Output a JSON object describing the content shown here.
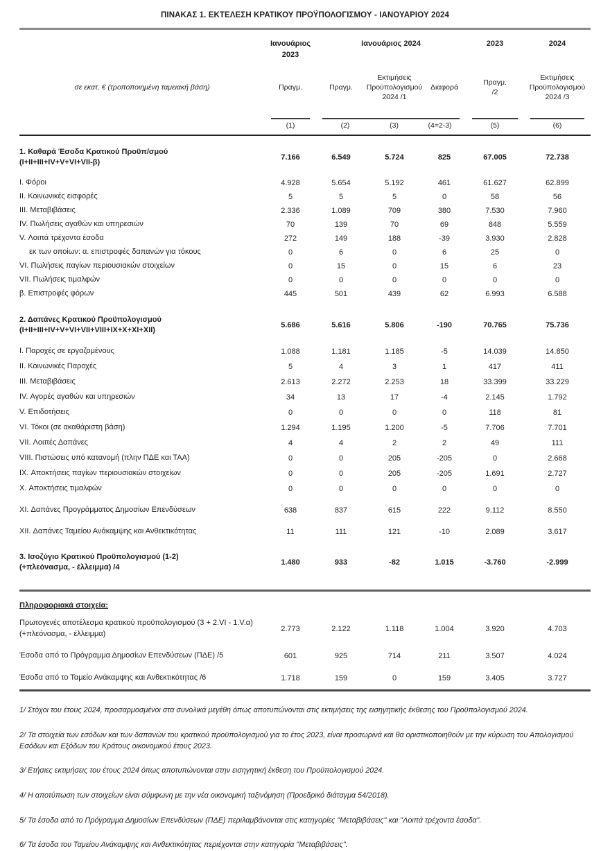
{
  "title": "ΠΙΝΑΚΑΣ 1. ΕΚΤΕΛΕΣΗ ΚΡΑΤΙΚΟΥ ΠΡΟΫΠΟΛΟΓΙΣΜΟΥ - ΙΑΝΟΥΑΡΙΟΥ 2024",
  "table": {
    "unit_label": "σε εκατ. € (τροποποιημένη ταμειακή βάση)",
    "column_groups": [
      {
        "label": "Ιανουάριος\n2023"
      },
      {
        "label": "Ιανουάριος 2024"
      },
      {
        "label": "2023"
      },
      {
        "label": "2024"
      }
    ],
    "sub_headers": [
      "Πραγμ.",
      "Πραγμ.",
      "Εκτιμήσεις\nΠροϋπολογισμού\n2024 /1",
      "Διαφορά",
      "Πραγμ.\n/2",
      "Εκτιμήσεις\nΠροϋπολογισμού\n2024 /3"
    ],
    "column_numbers": [
      "(1)",
      "(2)",
      "(3)",
      "(4=2-3)",
      "(5)",
      "(6)"
    ],
    "sections": [
      {
        "name": "section-1",
        "rows": [
          {
            "style": "total",
            "label": "1. Καθαρά Έσοδα Κρατικού Προϋπ/σμού",
            "label2": "(I+II+III+IV+V+VI+VII-β)",
            "values": [
              "7.166",
              "6.549",
              "5.724",
              "825",
              "67.005",
              "72.738"
            ]
          },
          {
            "style": "item",
            "label": "I.  Φόροι",
            "values": [
              "4.928",
              "5.654",
              "5.192",
              "461",
              "61.627",
              "62.899"
            ]
          },
          {
            "style": "item",
            "label": "II.  Κοινωνικές εισφορές",
            "values": [
              "5",
              "5",
              "5",
              "0",
              "58",
              "56"
            ]
          },
          {
            "style": "item",
            "label": "III. Μεταβιβάσεις",
            "values": [
              "2.336",
              "1.089",
              "709",
              "380",
              "7.530",
              "7.960"
            ]
          },
          {
            "style": "item",
            "label": "IV. Πωλήσεις αγαθών και υπηρεσιών",
            "values": [
              "70",
              "139",
              "70",
              "69",
              "848",
              "5.559"
            ]
          },
          {
            "style": "item",
            "label": "V.  Λοιπά τρέχοντα έσοδα",
            "values": [
              "272",
              "149",
              "188",
              "-39",
              "3.930",
              "2.828"
            ]
          },
          {
            "style": "item indent",
            "label": "εκ των οποίων:  α.  επιστροφές δαπανών για τόκους",
            "values": [
              "0",
              "6",
              "0",
              "6",
              "25",
              "0"
            ]
          },
          {
            "style": "item",
            "label": "VI.  Πωλήσεις παγίων περιουσιακών στοιχείων",
            "values": [
              "0",
              "15",
              "0",
              "15",
              "6",
              "23"
            ]
          },
          {
            "style": "item",
            "label": "VII. Πωλήσεις τιμαλφών",
            "values": [
              "0",
              "0",
              "0",
              "0",
              "0",
              "0"
            ]
          },
          {
            "style": "item",
            "label": "β.   Επιστροφές φόρων",
            "values": [
              "445",
              "501",
              "439",
              "62",
              "6.993",
              "6.588"
            ]
          }
        ]
      },
      {
        "name": "section-2",
        "rows": [
          {
            "style": "total",
            "label": "2. Δαπάνες Κρατικού Προϋπολογισμού",
            "label2": "(I+II+III+IV+V+VI+VII+VIII+IX+X+XI+XII)",
            "values": [
              "5.686",
              "5.616",
              "5.806",
              "-190",
              "70.765",
              "75.736"
            ]
          },
          {
            "style": "item",
            "label": "I. Παροχές σε εργαζομένους",
            "values": [
              "1.088",
              "1.181",
              "1.185",
              "-5",
              "14.039",
              "14.850"
            ]
          },
          {
            "style": "item",
            "label": "II. Κοινωνικές Παροχές",
            "values": [
              "5",
              "4",
              "3",
              "1",
              "417",
              "411"
            ]
          },
          {
            "style": "item",
            "label": "III. Μεταβιβάσεις",
            "values": [
              "2.613",
              "2.272",
              "2.253",
              "18",
              "33.399",
              "33.229"
            ]
          },
          {
            "style": "item",
            "label": "IV. Αγορές αγαθών και υπηρεσιών",
            "values": [
              "34",
              "13",
              "17",
              "-4",
              "2.145",
              "1.792"
            ]
          },
          {
            "style": "item",
            "label": "V. Επιδοτήσεις",
            "values": [
              "0",
              "0",
              "0",
              "0",
              "118",
              "81"
            ]
          },
          {
            "style": "item",
            "label": "VI. Τόκοι (σε ακαθάριστη βάση)",
            "values": [
              "1.294",
              "1.195",
              "1.200",
              "-5",
              "7.706",
              "7.701"
            ]
          },
          {
            "style": "item",
            "label": "VII. Λοιπές Δαπάνες",
            "values": [
              "4",
              "4",
              "2",
              "2",
              "49",
              "111"
            ]
          },
          {
            "style": "item",
            "label": "VIII. Πιστώσεις υπό κατανομή (πλην ΠΔΕ και ΤΑΑ)",
            "values": [
              "0",
              "0",
              "205",
              "-205",
              "0",
              "2.668"
            ]
          },
          {
            "style": "item",
            "label": "IX. Αποκτήσεις παγίων περιουσιακών στοιχείων",
            "values": [
              "0",
              "0",
              "205",
              "-205",
              "1.691",
              "2.727"
            ]
          },
          {
            "style": "item",
            "label": "X. Αποκτήσεις τιμαλφών",
            "values": [
              "0",
              "0",
              "0",
              "0",
              "0",
              "0"
            ]
          },
          {
            "style": "item",
            "gap": "lg",
            "label": "XI. Δαπάνες Προγράμματος Δημοσίων Επενδύσεων",
            "values": [
              "638",
              "837",
              "615",
              "222",
              "9.112",
              "8.550"
            ]
          },
          {
            "style": "item",
            "gap": "lg",
            "label": "XII. Δαπάνες Ταμείου Ανάκαμψης και Ανθεκτικότητας",
            "values": [
              "11",
              "111",
              "121",
              "-10",
              "2.089",
              "3.617"
            ]
          }
        ]
      },
      {
        "name": "section-3",
        "rows": [
          {
            "style": "total",
            "label": "3. Ισοζύγιο Κρατικού Προϋπολογισμού  (1-2)",
            "label2": "(+πλεόνασμα, - έλλειμμα)  /4",
            "values": [
              "1.480",
              "933",
              "-82",
              "1.015",
              "-3.760",
              "-2.999"
            ]
          }
        ]
      },
      {
        "name": "info",
        "rows": [
          {
            "style": "item",
            "label": "Πρωτογενές αποτέλεσμα κρατικού προϋπολογισμού  (3 + 2.VI - 1.V.α)",
            "label2": "(+πλεόνασμα, - έλλειμμα)",
            "values": [
              "2.773",
              "2.122",
              "1.118",
              "1.004",
              "3.920",
              "4.703"
            ]
          },
          {
            "style": "item",
            "label": "Έσοδα από το Πρόγραμμα Δημοσίων Επενδύσεων (ΠΔΕ)  /5",
            "values": [
              "601",
              "925",
              "714",
              "211",
              "3.507",
              "4.024"
            ]
          },
          {
            "style": "item",
            "label": "Έσοδα από το Ταμείο Ανάκαμψης και Ανθεκτικότητας   /6",
            "values": [
              "1.718",
              "159",
              "0",
              "159",
              "3.405",
              "3.727"
            ]
          }
        ]
      }
    ],
    "info_header": "Πληροφοριακά στοιχεία:"
  },
  "footnotes": [
    "1/ Στόχοι του έτους 2024, προσαρμοσμένοι στα συνολικά μεγέθη όπως αποτυπώνονται στις εκτιμήσεις της εισηγητικής έκθεσης του Προϋπολογισμού 2024.",
    "2/ Τα στοιχεία των εσόδων και των δαπανών του κρατικού προϋπολογισμού για το έτος 2023, είναι προσωρινά και θα οριστικοποιηθούν με την κύρωση του Απολογισμού Εσόδων και Εξόδων του Κράτους οικονομικού έτους 2023.",
    "3/ Ετήσιες εκτιμήσεις του έτους 2024 όπως αποτυπώνονται στην εισηγητική έκθεση του Προϋπολογισμού 2024.",
    "4/ Η αποτύπωση των στοιχείων είναι σύμφωνη με την νέα οικονομική ταξινόμηση (Προεδρικό διάταγμα 54/2018).",
    "5/ Τα έσοδα από το Πρόγραμμα Δημοσίων Επενδύσεων (ΠΔΕ) περιλαμβάνονται στις κατηγορίες \"Μεταβιβάσεις\" και \"Λοιπά τρέχοντα έσοδα\".",
    "6/ Τα έσοδα του Ταμείου Ανάκαμψης και Ανθεκτικότητας περιέχονται στην κατηγορία \"Μεταβιβάσεις\"."
  ]
}
